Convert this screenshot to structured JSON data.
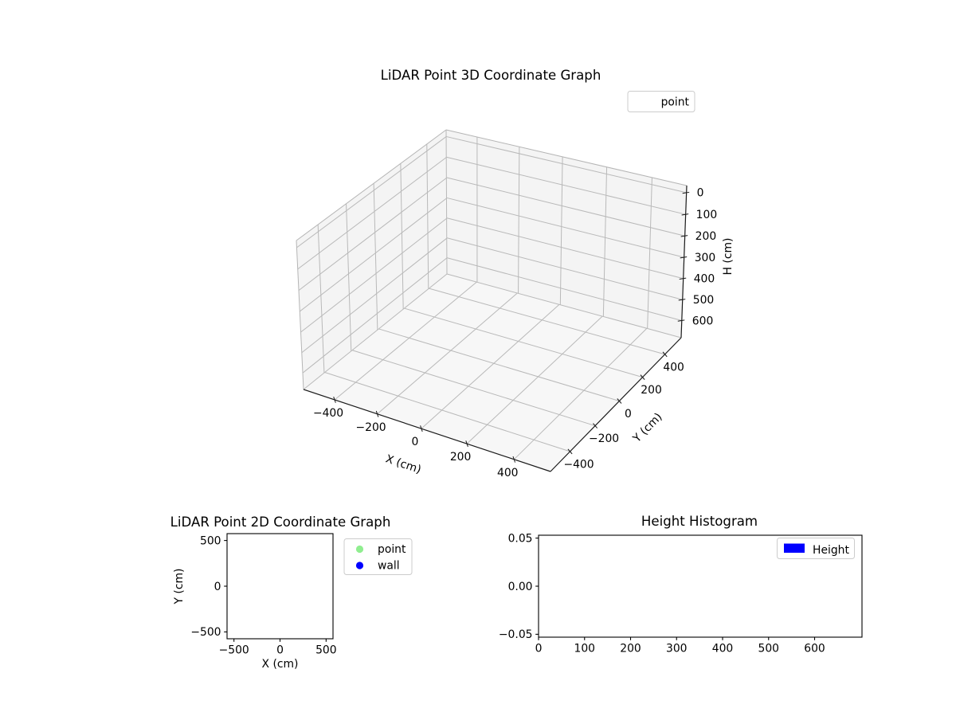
{
  "figure": {
    "background": "#ffffff"
  },
  "colors": {
    "pane_wall": "#f4f4f4",
    "pane_floor": "#f7f7f7",
    "grid": "#b9b9b9",
    "pane_edge": "#b5b5b5",
    "spine": "#1a1a1a",
    "point_marker": "#90ee90",
    "wall_marker": "#0000ff",
    "hist_bar": "#0000ff"
  },
  "chart_data": [
    {
      "type": "scatter",
      "projection": "3d",
      "title": "LiDAR Point 3D Coordinate Graph",
      "xlabel": "X (cm)",
      "ylabel": "Y (cm)",
      "zlabel": "H (cm)",
      "xlim": [
        -550,
        550
      ],
      "ylim": [
        -550,
        550
      ],
      "zlim": [
        -32.5,
        682.5
      ],
      "zaxis_inverted": true,
      "grid": true,
      "xticks": [
        -400,
        -200,
        0,
        200,
        400
      ],
      "xtick_labels": [
        "−400",
        "−200",
        "0",
        "200",
        "400"
      ],
      "yticks": [
        -400,
        -200,
        0,
        200,
        400
      ],
      "ytick_labels": [
        "−400",
        "−200",
        "0",
        "200",
        "400"
      ],
      "zticks": [
        0,
        100,
        200,
        300,
        400,
        500,
        600
      ],
      "ztick_labels": [
        "0",
        "100",
        "200",
        "300",
        "400",
        "500",
        "600"
      ],
      "legend": {
        "labels": [
          "point"
        ],
        "marker_visible": false,
        "location": "upper right"
      },
      "series": [
        {
          "name": "point",
          "points": []
        }
      ]
    },
    {
      "type": "scatter",
      "title": "LiDAR Point 2D Coordinate Graph",
      "xlabel": "X (cm)",
      "ylabel": "Y (cm)",
      "xlim": [
        -575,
        575
      ],
      "ylim": [
        -575,
        575
      ],
      "grid": false,
      "xticks": [
        -500,
        0,
        500
      ],
      "xtick_labels": [
        "−500",
        "0",
        "500"
      ],
      "yticks": [
        -500,
        0,
        500
      ],
      "ytick_labels": [
        "−500",
        "0",
        "500"
      ],
      "legend": {
        "labels": [
          "point",
          "wall"
        ],
        "colors": [
          "#90ee90",
          "#0000ff"
        ],
        "location": "outside upper right"
      },
      "series": [
        {
          "name": "point",
          "color": "#90ee90",
          "points": []
        },
        {
          "name": "wall",
          "color": "#0000ff",
          "points": []
        }
      ]
    },
    {
      "type": "bar",
      "title": "Height Histogram",
      "xlabel": "",
      "ylabel": "",
      "xlim": [
        0,
        703
      ],
      "ylim": [
        -0.053,
        0.053
      ],
      "grid": false,
      "xticks": [
        0,
        100,
        200,
        300,
        400,
        500,
        600
      ],
      "xtick_labels": [
        "0",
        "100",
        "200",
        "300",
        "400",
        "500",
        "600"
      ],
      "yticks": [
        0.05,
        0.0,
        -0.05
      ],
      "ytick_labels": [
        "0.05",
        "0.00",
        "−0.05"
      ],
      "legend": {
        "labels": [
          "Height"
        ],
        "colors": [
          "#0000ff"
        ],
        "location": "upper right"
      },
      "values": []
    }
  ]
}
